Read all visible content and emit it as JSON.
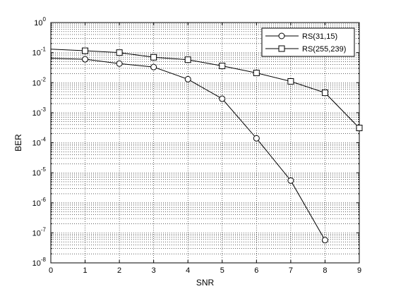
{
  "chart_data": {
    "type": "line",
    "title": "",
    "xlabel": "SNR",
    "ylabel": "BER",
    "xlim": [
      0,
      9
    ],
    "ylim": [
      1e-08,
      1
    ],
    "yscale": "log",
    "grid": true,
    "legend_position": "top-right",
    "x_ticks": [
      0,
      1,
      2,
      3,
      4,
      5,
      6,
      7,
      8,
      9
    ],
    "x_tick_labels": [
      "0",
      "1",
      "2",
      "3",
      "4",
      "5",
      "6",
      "7",
      "8",
      "9"
    ],
    "y_ticks": [
      0,
      -1,
      -2,
      -3,
      -4,
      -5,
      -6,
      -7,
      -8
    ],
    "y_tick_labels": [
      {
        "base": "10",
        "exp": "0"
      },
      {
        "base": "10",
        "exp": "-1"
      },
      {
        "base": "10",
        "exp": "-2"
      },
      {
        "base": "10",
        "exp": "-3"
      },
      {
        "base": "10",
        "exp": "-4"
      },
      {
        "base": "10",
        "exp": "-5"
      },
      {
        "base": "10",
        "exp": "-6"
      },
      {
        "base": "10",
        "exp": "-7"
      },
      {
        "base": "10",
        "exp": "-8"
      }
    ],
    "series": [
      {
        "name": "RS(31,15)",
        "marker": "circle",
        "color": "#000000",
        "x": [
          0,
          1,
          2,
          3,
          4,
          5,
          6,
          7,
          8
        ],
        "y": [
          0.065,
          0.06,
          0.043,
          0.033,
          0.013,
          0.0029,
          0.00014,
          5.5e-06,
          5.7e-08
        ]
      },
      {
        "name": "RS(255,239)",
        "marker": "square",
        "color": "#000000",
        "x": [
          0,
          1,
          2,
          3,
          4,
          5,
          6,
          7,
          8,
          9
        ],
        "y": [
          0.13,
          0.115,
          0.1,
          0.07,
          0.058,
          0.036,
          0.021,
          0.011,
          0.0046,
          0.00031
        ]
      }
    ]
  }
}
